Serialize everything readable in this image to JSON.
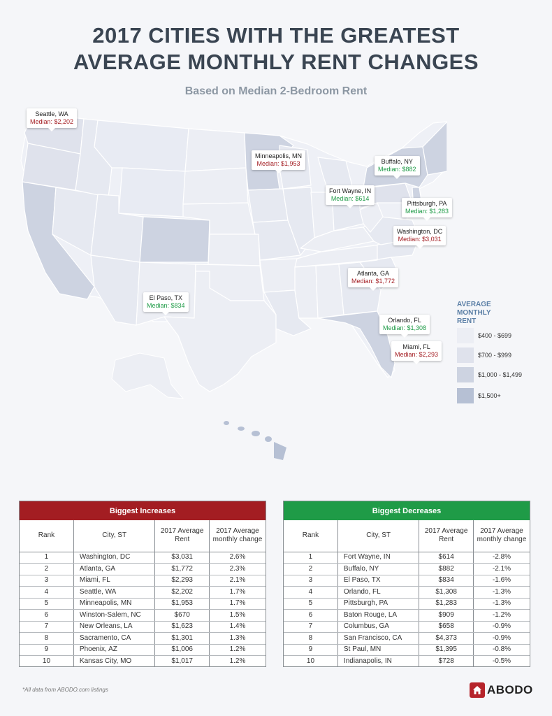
{
  "title": {
    "line1": "2017 CITIES WITH THE GREATEST",
    "line2": "AVERAGE MONTHLY RENT CHANGES"
  },
  "subtitle": "Based on Median 2-Bedroom Rent",
  "colors": {
    "increase": "#a31d22",
    "decrease": "#1f9b47",
    "legend_400_699": "#eceef4",
    "legend_700_999": "#dfe2ec",
    "legend_1000_1499": "#cdd3e1",
    "legend_1500_plus": "#b6c0d4"
  },
  "callouts": [
    {
      "city": "Seattle, WA",
      "median": "Median: $2,202",
      "trend": "up"
    },
    {
      "city": "Minneapolis, MN",
      "median": "Median: $1,953",
      "trend": "up"
    },
    {
      "city": "Buffalo, NY",
      "median": "Median: $882",
      "trend": "down"
    },
    {
      "city": "Fort Wayne, IN",
      "median": "Median: $614",
      "trend": "down"
    },
    {
      "city": "Pittsburgh, PA",
      "median": "Median: $1,283",
      "trend": "down"
    },
    {
      "city": "Washington, DC",
      "median": "Median: $3,031",
      "trend": "up"
    },
    {
      "city": "Atlanta, GA",
      "median": "Median: $1,772",
      "trend": "up"
    },
    {
      "city": "El Paso, TX",
      "median": "Median: $834",
      "trend": "down"
    },
    {
      "city": "Orlando, FL",
      "median": "Median: $1,308",
      "trend": "down"
    },
    {
      "city": "Miami, FL",
      "median": "Median: $2,293",
      "trend": "up"
    }
  ],
  "legend": {
    "title": "AVERAGE MONTHLY RENT",
    "items": [
      "$400 - $699",
      "$700 - $999",
      "$1,000 - $1,499",
      "$1,500+"
    ]
  },
  "increases": {
    "header": "Biggest Increases",
    "columns": [
      "Rank",
      "City, ST",
      "2017 Average Rent",
      "2017 Average monthly change"
    ],
    "rows": [
      {
        "rank": "1",
        "city": "Washington, DC",
        "rent": "$3,031",
        "change": "2.6%"
      },
      {
        "rank": "2",
        "city": "Atlanta, GA",
        "rent": "$1,772",
        "change": "2.3%"
      },
      {
        "rank": "3",
        "city": "Miami, FL",
        "rent": "$2,293",
        "change": "2.1%"
      },
      {
        "rank": "4",
        "city": "Seattle, WA",
        "rent": "$2,202",
        "change": "1.7%"
      },
      {
        "rank": "5",
        "city": "Minneapolis, MN",
        "rent": "$1,953",
        "change": "1.7%"
      },
      {
        "rank": "6",
        "city": "Winston-Salem, NC",
        "rent": "$670",
        "change": "1.5%"
      },
      {
        "rank": "7",
        "city": "New Orleans, LA",
        "rent": "$1,623",
        "change": "1.4%"
      },
      {
        "rank": "8",
        "city": "Sacramento, CA",
        "rent": "$1,301",
        "change": "1.3%"
      },
      {
        "rank": "9",
        "city": "Phoenix, AZ",
        "rent": "$1,006",
        "change": "1.2%"
      },
      {
        "rank": "10",
        "city": "Kansas City, MO",
        "rent": "$1,017",
        "change": "1.2%"
      }
    ]
  },
  "decreases": {
    "header": "Biggest Decreases",
    "columns": [
      "Rank",
      "City, ST",
      "2017 Average Rent",
      "2017 Average monthly change"
    ],
    "rows": [
      {
        "rank": "1",
        "city": "Fort Wayne, IN",
        "rent": "$614",
        "change": "-2.8%"
      },
      {
        "rank": "2",
        "city": "Buffalo, NY",
        "rent": "$882",
        "change": "-2.1%"
      },
      {
        "rank": "3",
        "city": "El Paso, TX",
        "rent": "$834",
        "change": "-1.6%"
      },
      {
        "rank": "4",
        "city": "Orlando, FL",
        "rent": "$1,308",
        "change": "-1.3%"
      },
      {
        "rank": "5",
        "city": "Pittsburgh, PA",
        "rent": "$1,283",
        "change": "-1.3%"
      },
      {
        "rank": "6",
        "city": "Baton Rouge, LA",
        "rent": "$909",
        "change": "-1.2%"
      },
      {
        "rank": "7",
        "city": "Columbus, GA",
        "rent": "$658",
        "change": "-0.9%"
      },
      {
        "rank": "8",
        "city": "San Francisco, CA",
        "rent": "$4,373",
        "change": "-0.9%"
      },
      {
        "rank": "9",
        "city": "St Paul, MN",
        "rent": "$1,395",
        "change": "-0.8%"
      },
      {
        "rank": "10",
        "city": "Indianapolis, IN",
        "rent": "$728",
        "change": "-0.5%"
      }
    ]
  },
  "footnote": "*All data from ABODO.com listings",
  "logo": {
    "text": "ABODO",
    "icon": "house-icon"
  }
}
